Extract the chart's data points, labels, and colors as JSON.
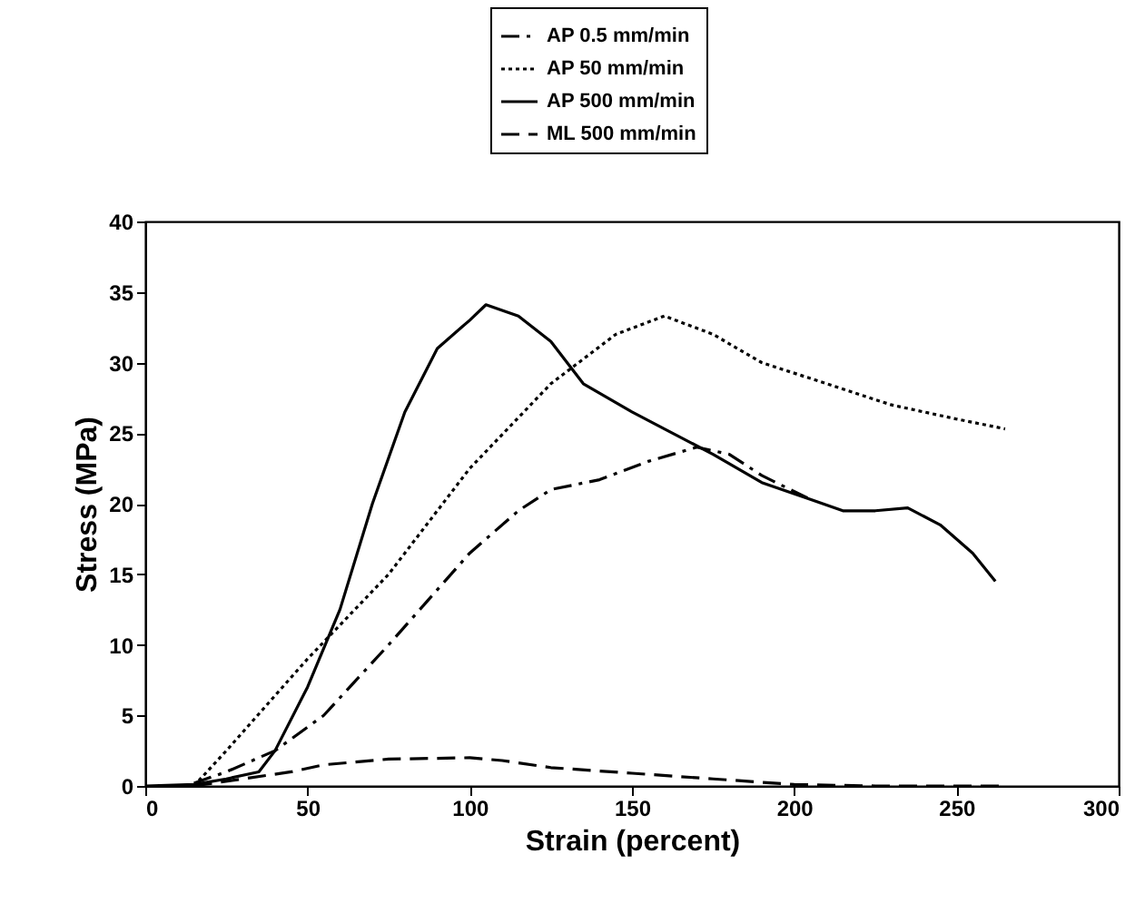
{
  "chart_data": {
    "type": "line",
    "xlabel": "Strain (percent)",
    "ylabel": "Stress (MPa)",
    "xlim": [
      0,
      300
    ],
    "ylim": [
      0,
      40
    ],
    "xticks": [
      0,
      50,
      100,
      150,
      200,
      250,
      300
    ],
    "yticks": [
      0,
      5,
      10,
      15,
      20,
      25,
      30,
      35,
      40
    ],
    "grid": false,
    "legend": "top",
    "marker": "none",
    "series": [
      {
        "name": "AP 0.5 mm/min",
        "color": "#000000",
        "line_style": "dashdot",
        "x": [
          15,
          25,
          40,
          55,
          75,
          100,
          115,
          125,
          140,
          155,
          170,
          180,
          190,
          205
        ],
        "values": [
          0.2,
          1,
          2.5,
          5,
          10,
          16.5,
          19.5,
          21,
          21.7,
          23,
          24,
          23.5,
          22,
          20.3
        ]
      },
      {
        "name": "AP 50 mm/min",
        "color": "#000000",
        "line_style": "dotted",
        "x": [
          15,
          25,
          50,
          75,
          100,
          125,
          145,
          160,
          175,
          190,
          210,
          230,
          250,
          265
        ],
        "values": [
          0,
          2.5,
          9,
          15,
          22.5,
          28.5,
          32,
          33.3,
          32,
          30,
          28.5,
          27,
          26,
          25.3
        ]
      },
      {
        "name": "AP 500 mm/min",
        "color": "#000000",
        "line_style": "solid",
        "x": [
          0,
          15,
          25,
          35,
          40,
          50,
          60,
          70,
          80,
          90,
          100,
          105,
          115,
          125,
          135,
          150,
          160,
          175,
          190,
          205,
          215,
          225,
          235,
          245,
          255,
          262
        ],
        "values": [
          0,
          0.1,
          0.5,
          1,
          2.5,
          7,
          12.5,
          20,
          26.5,
          31,
          33,
          34.1,
          33.3,
          31.5,
          28.5,
          26.5,
          25.3,
          23.5,
          21.5,
          20.3,
          19.5,
          19.5,
          19.7,
          18.5,
          16.5,
          14.5
        ]
      },
      {
        "name": "ML 500 mm/min",
        "color": "#000000",
        "line_style": "dashed",
        "x": [
          15,
          30,
          45,
          55,
          75,
          100,
          110,
          125,
          150,
          175,
          200,
          225,
          265
        ],
        "values": [
          0,
          0.5,
          1,
          1.5,
          1.9,
          2,
          1.8,
          1.3,
          0.9,
          0.5,
          0.1,
          0,
          0
        ]
      }
    ]
  }
}
